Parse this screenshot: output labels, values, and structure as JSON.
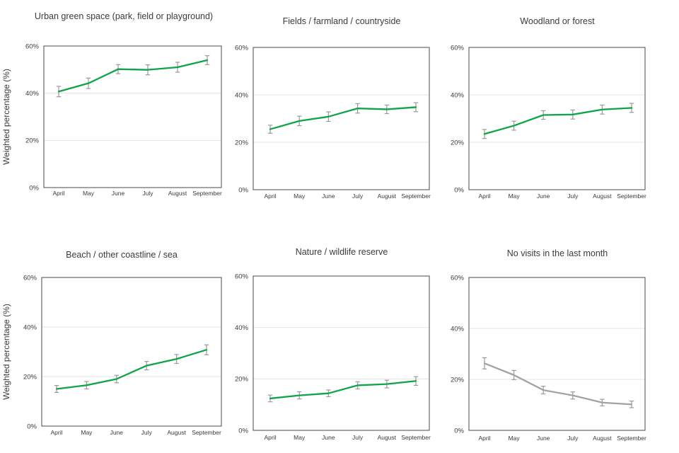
{
  "figure": {
    "layout": "2x3 small multiples of monthly trend line charts with error bars",
    "y_axis_label": "Weighted percentage (%)",
    "y_ticks": [
      "0%",
      "20%",
      "40%",
      "60%"
    ],
    "months": [
      "April",
      "May",
      "June",
      "July",
      "August",
      "September"
    ]
  },
  "colors": {
    "green_line": "#0ea448",
    "gray_line": "#a3a3a3",
    "error_bar": "#9a9a9a",
    "gridline": "#e3e3e3",
    "frame": "#4a4a4a",
    "text": "#3b3b3b"
  },
  "chart_data": [
    {
      "type": "line",
      "title": "Urban green space (park, field or playground)",
      "categories": [
        "April",
        "May",
        "June",
        "July",
        "August",
        "September"
      ],
      "values": [
        40.7,
        44.2,
        50.2,
        49.9,
        51.0,
        54.0
      ],
      "errors": [
        2.2,
        2.2,
        1.9,
        2.1,
        2.1,
        1.9
      ],
      "ylabel": "Weighted percentage (%)",
      "ylim": [
        0,
        60
      ],
      "y_ticks": [
        "0%",
        "20%",
        "40%",
        "60%"
      ],
      "grid": true,
      "line_color": "#0ea448"
    },
    {
      "type": "line",
      "title": "Fields / farmland / countryside",
      "categories": [
        "April",
        "May",
        "June",
        "July",
        "August",
        "September"
      ],
      "values": [
        25.5,
        29.0,
        30.8,
        34.3,
        33.9,
        34.8
      ],
      "errors": [
        1.7,
        2.0,
        2.0,
        2.0,
        1.8,
        1.9
      ],
      "ylabel": "",
      "ylim": [
        0,
        60
      ],
      "y_ticks": [
        "0%",
        "20%",
        "40%",
        "60%"
      ],
      "grid": true,
      "line_color": "#0ea448"
    },
    {
      "type": "line",
      "title": "Woodland or forest",
      "categories": [
        "April",
        "May",
        "June",
        "July",
        "August",
        "September"
      ],
      "values": [
        23.5,
        27.0,
        31.5,
        31.7,
        33.8,
        34.5
      ],
      "errors": [
        1.9,
        1.9,
        1.8,
        1.9,
        1.9,
        1.9
      ],
      "ylabel": "",
      "ylim": [
        0,
        60
      ],
      "y_ticks": [
        "0%",
        "20%",
        "40%",
        "60%"
      ],
      "grid": true,
      "line_color": "#0ea448"
    },
    {
      "type": "line",
      "title": "Beach / other coastline / sea",
      "categories": [
        "April",
        "May",
        "June",
        "July",
        "August",
        "September"
      ],
      "values": [
        15.0,
        16.5,
        19.0,
        24.4,
        27.1,
        30.8
      ],
      "errors": [
        1.4,
        1.5,
        1.5,
        1.7,
        1.8,
        2.0
      ],
      "ylabel": "Weighted percentage (%)",
      "ylim": [
        0,
        60
      ],
      "y_ticks": [
        "0%",
        "20%",
        "40%",
        "60%"
      ],
      "grid": true,
      "line_color": "#0ea448"
    },
    {
      "type": "line",
      "title": "Nature / wildlife reserve",
      "categories": [
        "April",
        "May",
        "June",
        "July",
        "August",
        "September"
      ],
      "values": [
        12.4,
        13.6,
        14.4,
        17.5,
        18.0,
        19.2
      ],
      "errors": [
        1.3,
        1.4,
        1.3,
        1.4,
        1.5,
        1.7
      ],
      "ylabel": "",
      "ylim": [
        0,
        60
      ],
      "y_ticks": [
        "0%",
        "20%",
        "40%",
        "60%"
      ],
      "grid": true,
      "line_color": "#0ea448"
    },
    {
      "type": "line",
      "title": "No visits in the last month",
      "categories": [
        "April",
        "May",
        "June",
        "July",
        "August",
        "September"
      ],
      "values": [
        26.3,
        21.7,
        15.8,
        13.7,
        10.9,
        10.2
      ],
      "errors": [
        2.2,
        1.8,
        1.5,
        1.4,
        1.3,
        1.3
      ],
      "ylabel": "",
      "ylim": [
        0,
        60
      ],
      "y_ticks": [
        "0%",
        "20%",
        "40%",
        "60%"
      ],
      "grid": true,
      "line_color": "#a3a3a3"
    }
  ]
}
